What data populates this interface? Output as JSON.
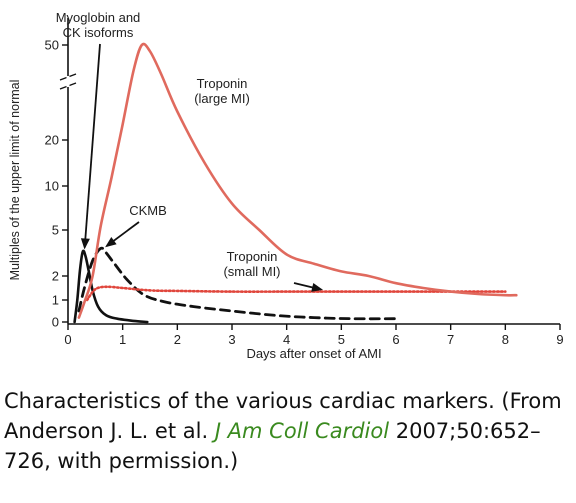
{
  "chart_data": {
    "type": "line",
    "xlabel": "Days after onset of AMI",
    "ylabel": "Multiples of the upper limit of normal",
    "x_ticks": [
      "0",
      "1",
      "2",
      "3",
      "4",
      "5",
      "6",
      "7",
      "8",
      "9"
    ],
    "y_ticks": [
      "0",
      "1",
      "2",
      "5",
      "10",
      "20",
      "50"
    ],
    "xlim": [
      0,
      9
    ],
    "ylim": [
      0,
      50
    ],
    "y_axis_break": true,
    "series": [
      {
        "name": "Myoglobin and CK isoforms",
        "color": "#111111",
        "style": "solid",
        "x": [
          0.12,
          0.17,
          0.22,
          0.27,
          0.32,
          0.38,
          0.45,
          0.55,
          0.7,
          0.9,
          1.2,
          1.45
        ],
        "y": [
          0.0,
          1.0,
          2.4,
          3.6,
          3.3,
          2.3,
          1.4,
          0.7,
          0.3,
          0.15,
          0.05,
          0.0
        ]
      },
      {
        "name": "CKMB",
        "color": "#111111",
        "style": "dashed",
        "x": [
          0.2,
          0.3,
          0.45,
          0.6,
          0.7,
          0.85,
          1.1,
          1.4,
          1.8,
          2.3,
          3.0,
          3.8,
          4.5,
          5.2,
          6.0
        ],
        "y": [
          0.5,
          1.5,
          3.0,
          3.8,
          3.5,
          2.8,
          1.8,
          1.2,
          0.9,
          0.7,
          0.5,
          0.3,
          0.2,
          0.15,
          0.15
        ]
      },
      {
        "name": "Troponin (small MI)",
        "color": "#e0463c",
        "style": "dotted",
        "x": [
          0.35,
          0.5,
          0.7,
          1.0,
          1.5,
          2.0,
          3.0,
          4.0,
          5.0,
          6.0,
          7.0,
          8.0
        ],
        "y": [
          1.0,
          1.45,
          1.55,
          1.5,
          1.4,
          1.38,
          1.35,
          1.35,
          1.35,
          1.35,
          1.35,
          1.35
        ]
      },
      {
        "name": "Troponin (large MI)",
        "color": "#e06a5e",
        "style": "solid",
        "x": [
          0.2,
          0.3,
          0.45,
          0.6,
          0.8,
          1.0,
          1.2,
          1.35,
          1.5,
          1.7,
          2.0,
          2.5,
          3.0,
          3.5,
          4.0,
          4.5,
          5.0,
          5.5,
          6.0,
          6.5,
          7.0,
          7.5,
          8.0,
          8.2
        ],
        "y": [
          0.2,
          0.9,
          2.0,
          5.5,
          12.0,
          25.0,
          42.0,
          50.0,
          48.0,
          41.0,
          29.0,
          15.0,
          8.0,
          5.0,
          3.4,
          2.8,
          2.3,
          2.0,
          1.7,
          1.5,
          1.35,
          1.25,
          1.2,
          1.2
        ]
      }
    ],
    "annotations": [
      {
        "text_lines": [
          "Myoglobin and",
          "CK isoforms"
        ],
        "arrow_to": [
          0.3,
          3.6
        ]
      },
      {
        "text_lines": [
          "CKMB"
        ],
        "arrow_to": [
          0.65,
          3.8
        ]
      },
      {
        "text_lines": [
          "Troponin",
          "(large MI)"
        ]
      },
      {
        "text_lines": [
          "Troponin",
          "(small MI)"
        ],
        "arrow_to": [
          4.7,
          1.4
        ]
      }
    ]
  },
  "caption": {
    "part1": "Characteristics of the various cardiac markers. (From Anderson J. L. et al. ",
    "journal": "J Am Coll Cardiol",
    "part2": " 2007;50:652–726, with permission.)"
  }
}
